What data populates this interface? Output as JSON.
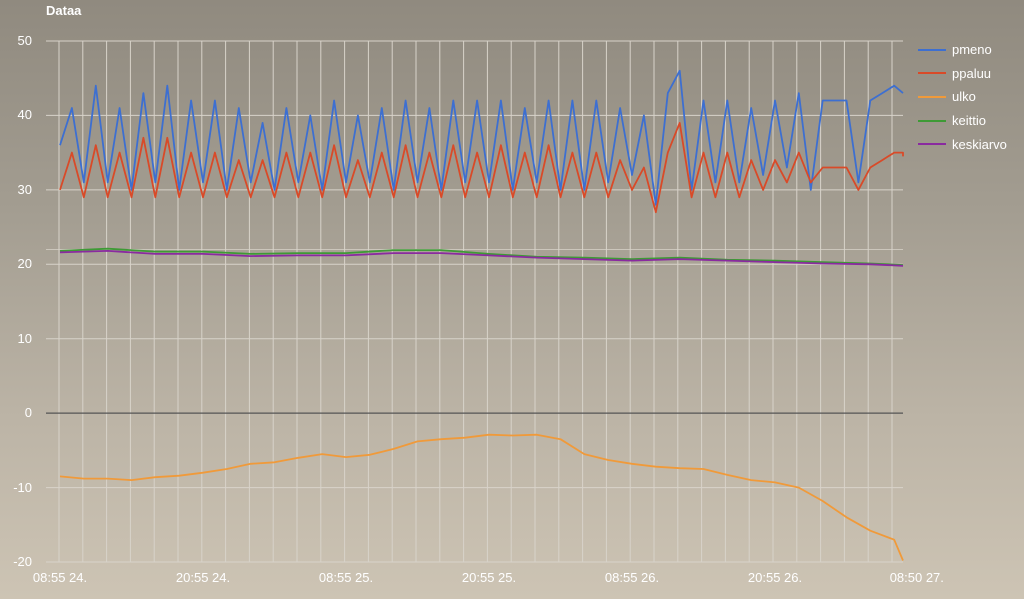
{
  "title": "Dataa",
  "colors": {
    "pmeno": "#3d6fd1",
    "ppaluu": "#d94a28",
    "ulko": "#f09a3a",
    "keittio": "#3e9a35",
    "keskiarvo": "#8a2aa0",
    "grid": "#d8d3ca",
    "zero": "#555555"
  },
  "legend": [
    {
      "name": "pmeno",
      "color": "#3d6fd1"
    },
    {
      "name": "ppaluu",
      "color": "#d94a28"
    },
    {
      "name": "ulko",
      "color": "#f09a3a"
    },
    {
      "name": "keittio",
      "color": "#3e9a35"
    },
    {
      "name": "keskiarvo",
      "color": "#8a2aa0"
    }
  ],
  "y_ticks": [
    "50",
    "40",
    "30",
    "20",
    "10",
    "0",
    "-10",
    "-20"
  ],
  "x_ticks": [
    "08:55 24.",
    "20:55 24.",
    "08:55 25.",
    "20:55 25.",
    "08:55 26.",
    "20:55 26.",
    "08:50 27."
  ],
  "chart_data": {
    "type": "line",
    "title": "Dataa",
    "xlabel": "",
    "ylabel": "",
    "ylim": [
      -20,
      50
    ],
    "grid": true,
    "legend_position": "right",
    "x_tick_labels": [
      "08:55 24.",
      "20:55 24.",
      "08:55 25.",
      "20:55 25.",
      "08:55 26.",
      "20:55 26.",
      "08:50 27."
    ],
    "x_hours_from_start": [
      0,
      12,
      24,
      36,
      48,
      60,
      71.9
    ],
    "series": [
      {
        "name": "pmeno",
        "description": "oscillating roughly 30-43, period ~2h, peaks up to ~46 near 08:55 26 + 4h, ends ~43",
        "x": [
          0,
          1,
          2,
          3,
          4,
          5,
          6,
          7,
          8,
          9,
          10,
          11,
          12,
          13,
          14,
          15,
          16,
          17,
          18,
          19,
          20,
          21,
          22,
          23,
          24,
          25,
          26,
          27,
          28,
          29,
          30,
          31,
          32,
          33,
          34,
          35,
          36,
          37,
          38,
          39,
          40,
          41,
          42,
          43,
          44,
          45,
          46,
          47,
          48,
          49,
          50,
          51,
          52,
          53,
          54,
          55,
          56,
          57,
          58,
          59,
          60,
          61,
          62,
          63,
          64,
          65,
          66,
          67,
          68,
          69,
          70,
          71,
          72
        ],
        "values": [
          36,
          41,
          31,
          44,
          31,
          41,
          30,
          43,
          31,
          44,
          30,
          42,
          31,
          42,
          30,
          41,
          31,
          39,
          30,
          41,
          31,
          40,
          30,
          42,
          31,
          40,
          31,
          41,
          30,
          42,
          31,
          41,
          30,
          42,
          31,
          42,
          31,
          42,
          30,
          41,
          31,
          42,
          30,
          42,
          30,
          42,
          31,
          41,
          32,
          40,
          28,
          43,
          46,
          30,
          42,
          31,
          42,
          31,
          41,
          32,
          42,
          33,
          43,
          30,
          42,
          42,
          42,
          31,
          42,
          43,
          44,
          43,
          43
        ]
      },
      {
        "name": "ppaluu",
        "description": "oscillating roughly 29-37, ends ~34.5",
        "x": [
          0,
          1,
          2,
          3,
          4,
          5,
          6,
          7,
          8,
          9,
          10,
          11,
          12,
          13,
          14,
          15,
          16,
          17,
          18,
          19,
          20,
          21,
          22,
          23,
          24,
          25,
          26,
          27,
          28,
          29,
          30,
          31,
          32,
          33,
          34,
          35,
          36,
          37,
          38,
          39,
          40,
          41,
          42,
          43,
          44,
          45,
          46,
          47,
          48,
          49,
          50,
          51,
          52,
          53,
          54,
          55,
          56,
          57,
          58,
          59,
          60,
          61,
          62,
          63,
          64,
          65,
          66,
          67,
          68,
          69,
          70,
          71,
          72
        ],
        "values": [
          30,
          35,
          29,
          36,
          29,
          35,
          29,
          37,
          29,
          37,
          29,
          35,
          29,
          35,
          29,
          34,
          29,
          34,
          29,
          35,
          29,
          35,
          29,
          36,
          29,
          34,
          29,
          35,
          29,
          36,
          29,
          35,
          29,
          36,
          29,
          35,
          29,
          36,
          29,
          35,
          29,
          36,
          29,
          35,
          29,
          35,
          29,
          34,
          30,
          33,
          27,
          35,
          39,
          29,
          35,
          29,
          35,
          29,
          34,
          30,
          34,
          31,
          35,
          31,
          33,
          33,
          33,
          30,
          33,
          34,
          35,
          35,
          34.5
        ]
      },
      {
        "name": "ulko",
        "x": [
          0,
          2,
          4,
          6,
          8,
          10,
          12,
          14,
          16,
          18,
          20,
          22,
          24,
          26,
          28,
          30,
          32,
          34,
          36,
          38,
          40,
          42,
          44,
          46,
          48,
          50,
          52,
          54,
          56,
          58,
          60,
          62,
          64,
          66,
          68,
          70,
          72
        ],
        "values": [
          -8.5,
          -8.8,
          -8.8,
          -9.0,
          -8.6,
          -8.4,
          -8.0,
          -7.5,
          -6.8,
          -6.6,
          -6.0,
          -5.5,
          -5.9,
          -5.6,
          -4.8,
          -3.8,
          -3.5,
          -3.3,
          -2.9,
          -3.0,
          -2.9,
          -3.5,
          -5.5,
          -6.3,
          -6.8,
          -7.2,
          -7.4,
          -7.5,
          -8.3,
          -9.0,
          -9.3,
          -10.0,
          -11.8,
          -14.0,
          -15.8,
          -17.0,
          -19.8
        ]
      },
      {
        "name": "keittio",
        "x": [
          0,
          4,
          8,
          12,
          16,
          20,
          24,
          28,
          32,
          36,
          40,
          44,
          48,
          52,
          56,
          60,
          64,
          68,
          72
        ],
        "values": [
          21.8,
          22.1,
          21.7,
          21.7,
          21.4,
          21.5,
          21.5,
          21.9,
          21.9,
          21.4,
          21.0,
          20.9,
          20.7,
          20.9,
          20.6,
          20.5,
          20.3,
          20.1,
          19.9
        ]
      },
      {
        "name": "keskiarvo",
        "x": [
          0,
          4,
          8,
          12,
          16,
          20,
          24,
          28,
          32,
          36,
          40,
          44,
          48,
          52,
          56,
          60,
          64,
          68,
          72
        ],
        "values": [
          21.6,
          21.8,
          21.4,
          21.4,
          21.1,
          21.2,
          21.2,
          21.5,
          21.5,
          21.2,
          20.9,
          20.7,
          20.5,
          20.7,
          20.5,
          20.3,
          20.1,
          20.0,
          19.8
        ]
      }
    ]
  }
}
